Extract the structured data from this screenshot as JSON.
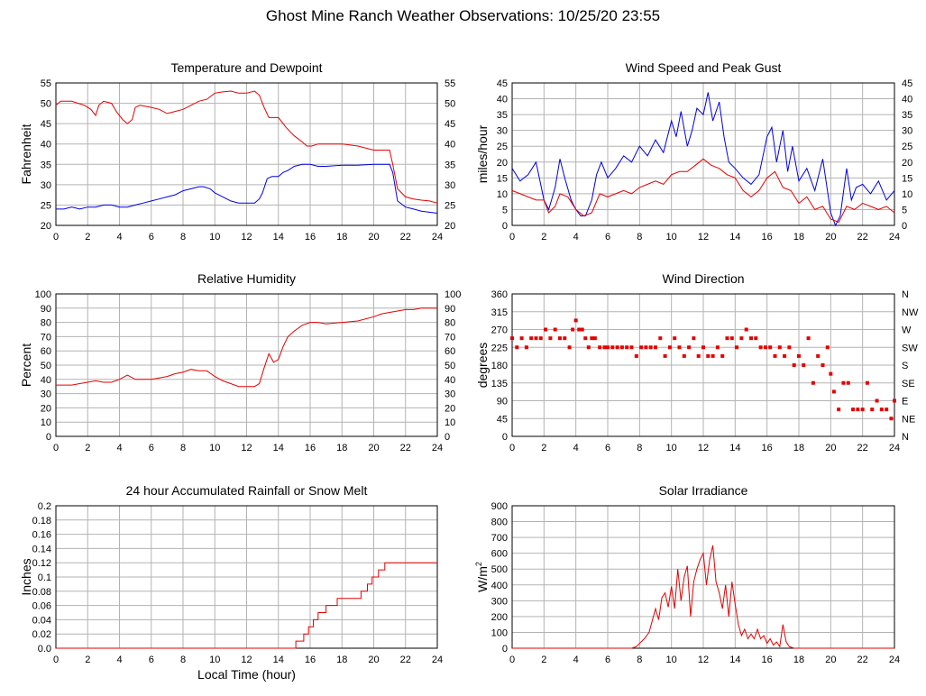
{
  "title": "Ghost Mine Ranch Weather Observations: 10/25/20 23:55",
  "common_xlabel": "Local Time (hour)",
  "chart_data": [
    {
      "type": "line",
      "title": "Temperature and Dewpoint",
      "xlabel": "",
      "ylabel": "Fahrenheit",
      "xlim": [
        0,
        24
      ],
      "ylim": [
        20,
        55
      ],
      "xticks": [
        0,
        2,
        4,
        6,
        8,
        10,
        12,
        14,
        16,
        18,
        20,
        22,
        24
      ],
      "yticks": [
        20,
        25,
        30,
        35,
        40,
        45,
        50,
        55
      ],
      "right_yticks": [
        "20",
        "25",
        "30",
        "35",
        "40",
        "45",
        "50",
        "55"
      ],
      "grid": true,
      "series": [
        {
          "color": "#e60000",
          "x": [
            0,
            0.3,
            0.6,
            1,
            1.4,
            1.8,
            2.2,
            2.5,
            2.7,
            3,
            3.5,
            3.8,
            4.2,
            4.5,
            4.8,
            5,
            5.3,
            6,
            6.5,
            7,
            7.5,
            8,
            8.5,
            9,
            9.5,
            10,
            10.5,
            11,
            11.5,
            12,
            12.5,
            12.8,
            13.1,
            13.4,
            13.7,
            14,
            14.5,
            15,
            15.5,
            15.8,
            16.1,
            16.5,
            17,
            18,
            19,
            20,
            21,
            21.2,
            21.5,
            22,
            22.5,
            23,
            23.5,
            24
          ],
          "values": [
            49.5,
            50.5,
            50.5,
            50.5,
            50,
            49.5,
            48.5,
            47,
            49.5,
            50.5,
            50,
            48,
            46,
            45,
            46,
            49,
            49.5,
            49,
            48.5,
            47.5,
            48,
            48.5,
            49.5,
            50.5,
            51,
            52.5,
            52.8,
            53,
            52.5,
            52.5,
            53,
            52,
            49,
            46.5,
            46.5,
            46.5,
            44,
            42,
            40.5,
            39.5,
            39.5,
            40,
            40,
            40,
            39.5,
            38.5,
            38.5,
            35,
            29,
            27,
            26.5,
            26.2,
            26,
            25.5
          ]
        },
        {
          "color": "#0000e6",
          "x": [
            0,
            0.5,
            1,
            1.5,
            2,
            2.5,
            3,
            3.5,
            4,
            4.5,
            5,
            5.5,
            6,
            6.5,
            7,
            7.5,
            8,
            8.5,
            9,
            9.3,
            9.7,
            10,
            10.5,
            11,
            11.5,
            12,
            12.5,
            12.8,
            13,
            13.3,
            13.6,
            14,
            14.3,
            14.6,
            15,
            15.5,
            16,
            16.5,
            17,
            18,
            19,
            20,
            20.5,
            21,
            21.2,
            21.5,
            22,
            22.5,
            23,
            24
          ],
          "values": [
            24,
            24,
            24.5,
            24,
            24.5,
            24.5,
            25,
            25,
            24.5,
            24.5,
            25,
            25.5,
            26,
            26.5,
            27,
            27.5,
            28.5,
            29,
            29.5,
            29.5,
            29,
            28,
            27,
            26,
            25.5,
            25.5,
            25.5,
            26.5,
            28,
            31.5,
            32,
            32,
            33,
            33.5,
            34.5,
            35,
            35,
            34.5,
            34.5,
            34.8,
            34.8,
            35,
            35,
            35,
            33,
            26,
            24.5,
            24,
            23.5,
            23
          ]
        }
      ]
    },
    {
      "type": "line",
      "title": "Wind Speed and Peak Gust",
      "xlabel": "",
      "ylabel": "miles/hour",
      "xlim": [
        0,
        24
      ],
      "ylim": [
        0,
        45
      ],
      "xticks": [
        0,
        2,
        4,
        6,
        8,
        10,
        12,
        14,
        16,
        18,
        20,
        22,
        24
      ],
      "yticks": [
        0,
        5,
        10,
        15,
        20,
        25,
        30,
        35,
        40,
        45
      ],
      "right_yticks": [
        "0",
        "5",
        "10",
        "15",
        "20",
        "25",
        "30",
        "35",
        "40",
        "45"
      ],
      "grid": true,
      "series": [
        {
          "color": "#0000e6",
          "x": [
            0,
            0.5,
            1,
            1.5,
            2,
            2.3,
            2.7,
            3,
            3.3,
            3.7,
            4,
            4.3,
            4.6,
            5,
            5.3,
            5.6,
            6,
            6.5,
            7,
            7.5,
            8,
            8.5,
            9,
            9.5,
            10,
            10.3,
            10.6,
            11,
            11.3,
            11.6,
            12,
            12.3,
            12.6,
            13,
            13.3,
            13.6,
            14,
            14.5,
            15,
            15.5,
            16,
            16.3,
            16.6,
            17,
            17.3,
            17.6,
            18,
            18.5,
            19,
            19.5,
            20,
            20.3,
            20.6,
            21,
            21.3,
            21.6,
            22,
            22.5,
            23,
            23.5,
            24
          ],
          "values": [
            18,
            14,
            16,
            20,
            8,
            5,
            12,
            21,
            15,
            8,
            5,
            3,
            3,
            8,
            16,
            20,
            15,
            18,
            22,
            20,
            25,
            22,
            27,
            23,
            33,
            28,
            36,
            25,
            30,
            37,
            35,
            42,
            33,
            39,
            28,
            20,
            18,
            15,
            13,
            16,
            28,
            31,
            20,
            30,
            17,
            25,
            14,
            18,
            11,
            21,
            4,
            0,
            3,
            18,
            8,
            12,
            13,
            10,
            14,
            8,
            11
          ]
        },
        {
          "color": "#e60000",
          "x": [
            0,
            0.5,
            1,
            1.5,
            2,
            2.3,
            2.7,
            3,
            3.5,
            4,
            4.5,
            5,
            5.5,
            6,
            6.5,
            7,
            7.5,
            8,
            8.5,
            9,
            9.5,
            10,
            10.5,
            11,
            11.5,
            12,
            12.5,
            13,
            13.5,
            14,
            14.5,
            15,
            15.5,
            16,
            16.5,
            17,
            17.5,
            18,
            18.5,
            19,
            19.5,
            20,
            20.5,
            21,
            21.5,
            22,
            22.5,
            23,
            23.5,
            24
          ],
          "values": [
            11,
            10,
            9,
            8,
            8,
            4,
            6,
            10,
            9,
            5,
            3,
            4,
            10,
            9,
            10,
            11,
            10,
            12,
            13,
            14,
            13,
            16,
            17,
            17,
            19,
            21,
            19,
            18,
            16,
            15,
            11,
            9,
            11,
            15,
            17,
            12,
            11,
            7,
            9,
            5,
            6,
            2,
            1,
            6,
            5,
            7,
            6,
            5,
            6,
            4
          ]
        }
      ]
    },
    {
      "type": "line",
      "title": "Relative Humidity",
      "xlabel": "",
      "ylabel": "Percent",
      "xlim": [
        0,
        24
      ],
      "ylim": [
        0,
        100
      ],
      "xticks": [
        0,
        2,
        4,
        6,
        8,
        10,
        12,
        14,
        16,
        18,
        20,
        22,
        24
      ],
      "yticks": [
        0,
        10,
        20,
        30,
        40,
        50,
        60,
        70,
        80,
        90,
        100
      ],
      "right_yticks": [
        "0",
        "10",
        "20",
        "30",
        "40",
        "50",
        "60",
        "70",
        "80",
        "90",
        "100"
      ],
      "grid": true,
      "series": [
        {
          "color": "#e60000",
          "x": [
            0,
            0.5,
            1,
            1.5,
            2,
            2.5,
            3,
            3.5,
            4,
            4.5,
            5,
            5.5,
            6,
            6.5,
            7,
            7.5,
            8,
            8.5,
            9,
            9.5,
            10,
            10.5,
            11,
            11.5,
            12,
            12.5,
            12.8,
            13.1,
            13.4,
            13.7,
            14,
            14.3,
            14.6,
            15,
            15.5,
            16,
            16.5,
            17,
            18,
            19,
            20,
            20.5,
            21,
            21.5,
            22,
            22.5,
            23,
            24
          ],
          "values": [
            36,
            36,
            36,
            37,
            38,
            39,
            38,
            38,
            40,
            43,
            40,
            40,
            40,
            41,
            42,
            44,
            45,
            47,
            46,
            46,
            42,
            39,
            37,
            35,
            35,
            35,
            37,
            48,
            58,
            52,
            54,
            63,
            70,
            74,
            78,
            80,
            80,
            79,
            80,
            81,
            84,
            86,
            87,
            88,
            89,
            89,
            90,
            90
          ]
        }
      ]
    },
    {
      "type": "scatter",
      "title": "Wind Direction",
      "xlabel": "",
      "ylabel": "degrees",
      "xlim": [
        0,
        24
      ],
      "ylim": [
        0,
        360
      ],
      "xticks": [
        0,
        2,
        4,
        6,
        8,
        10,
        12,
        14,
        16,
        18,
        20,
        22,
        24
      ],
      "yticks": [
        0,
        45,
        90,
        135,
        180,
        225,
        270,
        315,
        360
      ],
      "right_yticks": [
        "N",
        "NE",
        "E",
        "SE",
        "S",
        "SW",
        "W",
        "NW",
        "N"
      ],
      "grid": true,
      "series": [
        {
          "color": "#e60000",
          "x": [
            0,
            0.3,
            0.6,
            0.9,
            1.2,
            1.5,
            1.8,
            2.1,
            2.4,
            2.7,
            3,
            3.3,
            3.6,
            3.8,
            4,
            4.2,
            4.4,
            4.6,
            4.8,
            5,
            5.2,
            5.5,
            5.8,
            6,
            6.3,
            6.6,
            6.9,
            7.2,
            7.5,
            7.8,
            8.1,
            8.4,
            8.7,
            9,
            9.3,
            9.6,
            9.9,
            10.2,
            10.5,
            10.8,
            11.1,
            11.4,
            11.7,
            12,
            12.3,
            12.6,
            12.9,
            13.2,
            13.5,
            13.8,
            14.1,
            14.4,
            14.7,
            15,
            15.3,
            15.6,
            15.9,
            16.2,
            16.5,
            16.8,
            17.1,
            17.4,
            17.7,
            18,
            18.3,
            18.6,
            18.9,
            19.2,
            19.5,
            19.8,
            20,
            20.2,
            20.5,
            20.8,
            21.1,
            21.4,
            21.7,
            22,
            22.3,
            22.6,
            22.9,
            23.2,
            23.5,
            23.8,
            24
          ],
          "values": [
            248,
            225,
            248,
            225,
            248,
            248,
            248,
            270,
            248,
            270,
            248,
            248,
            225,
            270,
            293,
            270,
            270,
            248,
            225,
            248,
            248,
            225,
            225,
            225,
            225,
            225,
            225,
            225,
            225,
            203,
            225,
            225,
            225,
            225,
            248,
            203,
            225,
            248,
            225,
            203,
            225,
            248,
            203,
            225,
            203,
            203,
            225,
            203,
            248,
            248,
            225,
            248,
            270,
            248,
            248,
            225,
            225,
            225,
            203,
            225,
            203,
            225,
            180,
            203,
            180,
            248,
            135,
            203,
            180,
            225,
            158,
            113,
            68,
            135,
            135,
            68,
            68,
            68,
            135,
            68,
            90,
            68,
            68,
            45,
            90
          ]
        }
      ]
    },
    {
      "type": "line",
      "title": "24 hour Accumulated Rainfall or Snow Melt",
      "xlabel": "Local Time (hour)",
      "ylabel": "Inches",
      "xlim": [
        0,
        24
      ],
      "ylim": [
        0,
        0.2
      ],
      "xticks": [
        0,
        2,
        4,
        6,
        8,
        10,
        12,
        14,
        16,
        18,
        20,
        22,
        24
      ],
      "yticks": [
        0,
        0.02,
        0.04,
        0.06,
        0.08,
        0.1,
        0.12,
        0.14,
        0.16,
        0.18,
        0.2
      ],
      "ytick_labels": [
        "0.0",
        "0.02",
        "0.04",
        "0.06",
        "0.08",
        "0.1",
        "0.12",
        "0.14",
        "0.16",
        "0.18",
        "0.2"
      ],
      "right_yticks": [],
      "grid": true,
      "series": [
        {
          "color": "#e60000",
          "x": [
            0,
            15.1,
            15.1,
            15.6,
            15.6,
            15.9,
            15.9,
            16.2,
            16.2,
            16.5,
            16.5,
            17,
            17,
            17.2,
            17.2,
            17.7,
            17.7,
            18.2,
            18.2,
            19.2,
            19.2,
            19.6,
            19.6,
            19.9,
            19.9,
            20.3,
            20.3,
            20.7,
            20.7,
            21.3,
            21.3,
            24
          ],
          "values": [
            0,
            0,
            0.01,
            0.01,
            0.02,
            0.02,
            0.03,
            0.03,
            0.04,
            0.04,
            0.05,
            0.05,
            0.06,
            0.06,
            0.06,
            0.06,
            0.07,
            0.07,
            0.07,
            0.07,
            0.08,
            0.08,
            0.09,
            0.09,
            0.1,
            0.1,
            0.11,
            0.11,
            0.12,
            0.12,
            0.12,
            0.12
          ]
        }
      ]
    },
    {
      "type": "line",
      "title": "Solar Irradiance",
      "xlabel": "",
      "ylabel": "W/m",
      "ylabel_sup": "2",
      "xlim": [
        0,
        24
      ],
      "ylim": [
        0,
        900
      ],
      "xticks": [
        0,
        2,
        4,
        6,
        8,
        10,
        12,
        14,
        16,
        18,
        20,
        22,
        24
      ],
      "yticks": [
        0,
        100,
        200,
        300,
        400,
        500,
        600,
        700,
        800,
        900
      ],
      "right_yticks": [],
      "grid": true,
      "series": [
        {
          "color": "#e60000",
          "x": [
            0,
            7.5,
            7.8,
            8,
            8.3,
            8.6,
            9,
            9.2,
            9.4,
            9.6,
            9.8,
            10,
            10.2,
            10.4,
            10.6,
            10.8,
            11,
            11.2,
            11.4,
            11.6,
            11.8,
            12,
            12.2,
            12.4,
            12.6,
            12.8,
            13,
            13.2,
            13.4,
            13.6,
            13.8,
            14,
            14.2,
            14.4,
            14.6,
            14.8,
            15,
            15.2,
            15.4,
            15.6,
            15.8,
            16,
            16.2,
            16.4,
            16.6,
            16.8,
            17,
            17.2,
            17.4,
            17.7,
            18,
            24
          ],
          "values": [
            0,
            0,
            10,
            30,
            60,
            100,
            250,
            180,
            320,
            350,
            260,
            390,
            250,
            500,
            300,
            450,
            520,
            200,
            420,
            500,
            560,
            600,
            400,
            560,
            650,
            420,
            350,
            250,
            400,
            200,
            420,
            280,
            150,
            80,
            120,
            60,
            90,
            60,
            120,
            60,
            80,
            30,
            60,
            20,
            40,
            10,
            150,
            40,
            10,
            0,
            0,
            0
          ]
        }
      ]
    }
  ]
}
